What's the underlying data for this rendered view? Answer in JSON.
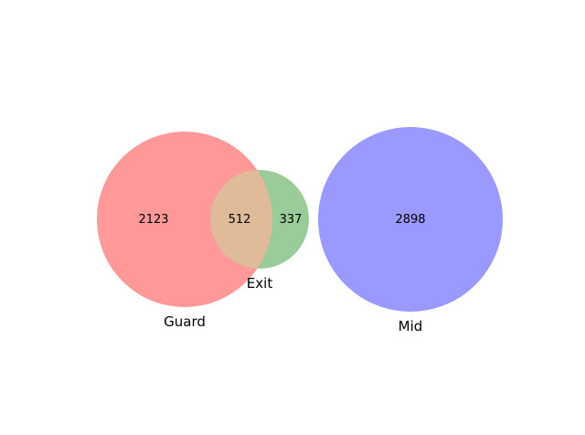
{
  "sets": {
    "guard": {
      "label": "Guard",
      "only_count": "2123",
      "color": "#ff9999"
    },
    "exit": {
      "label": "Exit",
      "only_count": "337",
      "color": "#99cc99"
    },
    "mid": {
      "label": "Mid",
      "only_count": "2898",
      "color": "#9999ff"
    }
  },
  "intersections": {
    "guard_exit": {
      "count": "512",
      "color": "#e0bb99"
    }
  }
}
